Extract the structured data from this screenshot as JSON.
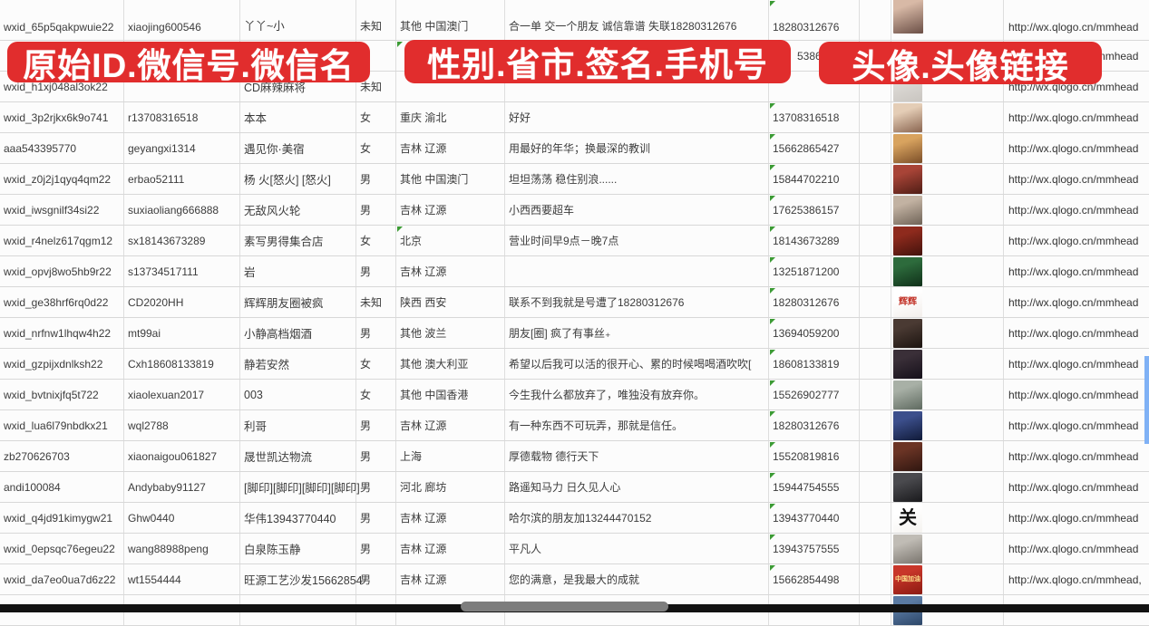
{
  "banners": [
    {
      "label": "原始ID.微信号.微信名"
    },
    {
      "label": "性别.省市.签名.手机号"
    },
    {
      "label": "头像.头像链接"
    }
  ],
  "colors": {
    "banner_red": "#e12d2d",
    "grid_gray": "#d8d8d8",
    "text_gray": "#3c3c3c",
    "error_green": "#3c9b35",
    "scrollbar_blue": "#7fb1f5",
    "pill_gray": "#7d7d7d"
  },
  "rows": [
    {
      "wxid": "wxid_65p5qakpwuie22",
      "account": "xiaojing600546",
      "name": "丫丫~小",
      "gender": "未知",
      "region": "其他 中国澳门",
      "signature": "合一单 交一个朋友 诚信靠谱 失联18280312676",
      "phone": "18280312676",
      "phone_flag": true,
      "url": "http://wx.qlogo.cn/mmhead",
      "avatar": {
        "c1": "#d8b9a6",
        "c2": "#6b4f46",
        "text": "",
        "tc": "",
        "ts": 0
      }
    },
    {
      "wxid": "",
      "account": "",
      "name": "",
      "gender": "",
      "region": "",
      "signature": "",
      "phone": "5386",
      "phone_flag": false,
      "phone_pad": true,
      "region_flag": true,
      "url": "http://wx.qlogo.cn/mmhead",
      "avatar": null
    },
    {
      "wxid": "wxid_h1xj048al3ok22",
      "account": "",
      "name": "CD麻辣麻将",
      "gender": "未知",
      "region": "",
      "signature": "",
      "phone": "",
      "phone_flag": true,
      "url": "http://wx.qlogo.cn/mmhead",
      "avatar": {
        "c1": "#dddad6",
        "c2": "#c9c5c0",
        "text": "",
        "tc": "",
        "ts": 0
      }
    },
    {
      "wxid": "wxid_3p2rjkx6k9o741",
      "account": "r13708316518",
      "name": "本本",
      "gender": "女",
      "region": "重庆 渝北",
      "signature": "好好",
      "phone": "13708316518",
      "phone_flag": true,
      "url": "http://wx.qlogo.cn/mmhead",
      "avatar": {
        "c1": "#e4cdb6",
        "c2": "#8a6550",
        "text": "",
        "tc": "",
        "ts": 0
      }
    },
    {
      "wxid": "aaa543395770",
      "account": "geyangxi1314",
      "name": "遇见你·美宿",
      "gender": "女",
      "region": "吉林 辽源",
      "signature": "用最好的年华；换最深的教训",
      "phone": "15662865427",
      "phone_flag": true,
      "url": "http://wx.qlogo.cn/mmhead",
      "avatar": {
        "c1": "#d8a35f",
        "c2": "#7b4e28",
        "text": "",
        "tc": "",
        "ts": 0
      }
    },
    {
      "wxid": "wxid_z0j2j1qyq4qm22",
      "account": "erbao52111",
      "name": "杨 火[怒火] [怒火]",
      "gender": "男",
      "region": "其他 中国澳门",
      "signature": "坦坦荡荡 稳住别浪......",
      "phone": "15844702210",
      "phone_flag": true,
      "url": "http://wx.qlogo.cn/mmhead",
      "avatar": {
        "c1": "#a84437",
        "c2": "#4f1d15",
        "text": "",
        "tc": "",
        "ts": 0
      }
    },
    {
      "wxid": "wxid_iwsgnilf34si22",
      "account": "suxiaoliang666888",
      "name": "无敌风火轮",
      "gender": "男",
      "region": "吉林 辽源",
      "signature": "小西西要超车",
      "phone": "17625386157",
      "phone_flag": true,
      "url": "http://wx.qlogo.cn/mmhead",
      "avatar": {
        "c1": "#c2b2a2",
        "c2": "#6f6357",
        "text": "",
        "tc": "",
        "ts": 0
      }
    },
    {
      "wxid": "wxid_r4nelz617qgm12",
      "account": "sx18143673289",
      "name": "素写男得集合店",
      "gender": "女",
      "region": "北京",
      "signature": "营业时间早9点－晚7点",
      "phone": "18143673289",
      "phone_flag": true,
      "region_flag": true,
      "url": "http://wx.qlogo.cn/mmhead",
      "avatar": {
        "c1": "#8e2a1d",
        "c2": "#43120c",
        "text": "",
        "tc": "",
        "ts": 0
      }
    },
    {
      "wxid": "wxid_opvj8wo5hb9r22",
      "account": "s13734517111",
      "name": "岩",
      "gender": "男",
      "region": "吉林 辽源",
      "signature": "",
      "phone": "13251871200",
      "phone_flag": true,
      "url": "http://wx.qlogo.cn/mmhead",
      "avatar": {
        "c1": "#2d6b3c",
        "c2": "#103019",
        "text": "",
        "tc": "",
        "ts": 0
      }
    },
    {
      "wxid": "wxid_ge38hrf6rq0d22",
      "account": "CD2020HH",
      "name": "辉辉朋友圈被疯",
      "gender": "未知",
      "region": "陕西 西安",
      "signature": "联系不到我就是号遭了18280312676",
      "phone": "18280312676",
      "phone_flag": true,
      "url": "http://wx.qlogo.cn/mmhead",
      "avatar": {
        "c1": "#ffffff",
        "c2": "#f3efec",
        "text": "辉辉",
        "tc": "#c23227",
        "ts": 10
      }
    },
    {
      "wxid": "wxid_nrfnw1lhqw4h22",
      "account": "mt99ai",
      "name": "小静高档烟酒",
      "gender": "男",
      "region": "其他 波兰",
      "signature": "朋友[圈] 疯了有事丝₊",
      "phone": "13694059200",
      "phone_flag": true,
      "url": "http://wx.qlogo.cn/mmhead",
      "avatar": {
        "c1": "#4a3a33",
        "c2": "#1c1410",
        "text": "",
        "tc": "",
        "ts": 0
      }
    },
    {
      "wxid": "wxid_gzpijxdnlksh22",
      "account": "Cxh18608133819",
      "name": "静若安然",
      "gender": "女",
      "region": "其他 澳大利亚",
      "signature": "希望以后我可以活的很开心、累的时候喝喝酒吹吹[",
      "phone": "18608133819",
      "phone_flag": true,
      "url": "http://wx.qlogo.cn/mmhead",
      "avatar": {
        "c1": "#3a2f38",
        "c2": "#15101a",
        "text": "",
        "tc": "",
        "ts": 0
      }
    },
    {
      "wxid": "wxid_bvtnixjfq5t722",
      "account": "xiaolexuan2017",
      "name": "003",
      "gender": "女",
      "region": "其他 中国香港",
      "signature": "今生我什么都放弃了，唯独没有放弃你。",
      "phone": "15526902777",
      "phone_flag": true,
      "url": "http://wx.qlogo.cn/mmhead",
      "avatar": {
        "c1": "#a8b0a6",
        "c2": "#5f6a60",
        "text": "",
        "tc": "",
        "ts": 0
      }
    },
    {
      "wxid": "wxid_lua6l79nbdkx21",
      "account": "wql2788",
      "name": "利哥",
      "gender": "男",
      "region": "吉林 辽源",
      "signature": "有一种东西不可玩弄，那就是信任。",
      "phone": "18280312676",
      "phone_flag": true,
      "url": "http://wx.qlogo.cn/mmhead",
      "avatar": {
        "c1": "#3c4f8c",
        "c2": "#101a38",
        "text": "",
        "tc": "",
        "ts": 0
      }
    },
    {
      "wxid": "zb270626703",
      "account": "xiaonaigou061827",
      "name": "晟世凯达物流",
      "gender": "男",
      "region": "上海",
      "signature": "厚德载物 德行天下",
      "phone": "15520819816",
      "phone_flag": true,
      "url": "http://wx.qlogo.cn/mmhead",
      "avatar": {
        "c1": "#6b3425",
        "c2": "#2f1610",
        "text": "",
        "tc": "",
        "ts": 0
      }
    },
    {
      "wxid": "andi100084",
      "account": "Andybaby91127",
      "name": "[脚印][脚印][脚印][脚印]",
      "gender": "男",
      "region": "河北 廊坊",
      "signature": "路遥知马力 日久见人心",
      "phone": "15944754555",
      "phone_flag": true,
      "url": "http://wx.qlogo.cn/mmhead",
      "avatar": {
        "c1": "#4a4a4e",
        "c2": "#19191c",
        "text": "",
        "tc": "",
        "ts": 0
      }
    },
    {
      "wxid": "wxid_q4jd91kimygw21",
      "account": "Ghw0440",
      "name": "华伟13943770440",
      "gender": "男",
      "region": "吉林 辽源",
      "signature": "哈尔滨的朋友加13244470152",
      "phone": "13943770440",
      "phone_flag": true,
      "url": "http://wx.qlogo.cn/mmhead",
      "avatar": {
        "c1": "#ffffff",
        "c2": "#f5f3f0",
        "text": "关",
        "tc": "#111111",
        "ts": 20
      }
    },
    {
      "wxid": "wxid_0epsqc76egeu22",
      "account": "wang88988peng",
      "name": "白泉陈玉静",
      "gender": "男",
      "region": "吉林 辽源",
      "signature": "平凡人",
      "phone": "13943757555",
      "phone_flag": true,
      "url": "http://wx.qlogo.cn/mmhead",
      "avatar": {
        "c1": "#c0bcb5",
        "c2": "#7a756e",
        "text": "",
        "tc": "",
        "ts": 0
      }
    },
    {
      "wxid": "wxid_da7eo0ua7d6z22",
      "account": "wt1554444",
      "name": "旺源工艺沙发15662854",
      "gender": "男",
      "region": "吉林 辽源",
      "signature": "您的满意，是我最大的成就",
      "phone": "15662854498",
      "phone_flag": true,
      "url": "http://wx.qlogo.cn/mmhead,",
      "avatar": {
        "c1": "#c8362a",
        "c2": "#8c1b12",
        "text": "中国加油",
        "tc": "#ffe08a",
        "ts": 7
      }
    },
    {
      "wxid": "",
      "account": "",
      "name": "",
      "gender": "",
      "region": "",
      "signature": "",
      "phone": "",
      "phone_flag": false,
      "url": "",
      "avatar": {
        "c1": "#5b7ba3",
        "c2": "#2c4668",
        "text": "",
        "tc": "",
        "ts": 0
      }
    }
  ]
}
